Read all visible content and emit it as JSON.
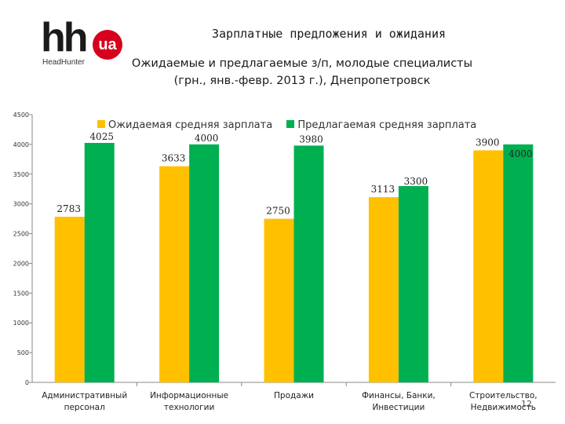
{
  "logo": {
    "brand": "hh",
    "badge": "ua",
    "name": "HeadHunter"
  },
  "header": {
    "title": "Зарплатные предложения и ожидания",
    "subtitle_line1": "Ожидаемые и предлагаемые з/п, молодые специалисты",
    "subtitle_line2": "(грн., янв.-февр. 2013 г.), Днепропетровск"
  },
  "slide_number": "12",
  "colors": {
    "expected": "#FFC000",
    "offered": "#00B050"
  },
  "chart_data": {
    "type": "bar",
    "title": "Ожидаемые и предлагаемые з/п, молодые специалисты (грн., янв.-февр. 2013 г.), Днепропетровск",
    "xlabel": "",
    "ylabel": "",
    "ylim": [
      0,
      4500
    ],
    "yticks": [
      0,
      500,
      1000,
      1500,
      2000,
      2500,
      3000,
      3500,
      4000,
      4500
    ],
    "grid": false,
    "legend": "top",
    "categories": [
      [
        "Административный",
        "персонал"
      ],
      [
        "Информационные",
        "технологии"
      ],
      [
        "Продажи"
      ],
      [
        "Финансы, Банки,",
        "Инвестиции"
      ],
      [
        "Строительство,",
        "Недвижимость"
      ]
    ],
    "series": [
      {
        "name": "Ожидаемая средняя зарплата",
        "values": [
          2783,
          3633,
          2750,
          3113,
          3900
        ],
        "labels": [
          "2783",
          "3633",
          "2750",
          "3113",
          "3900"
        ]
      },
      {
        "name": "Предлагаемая средняя зарплата",
        "values": [
          4025,
          4000,
          3980,
          3300,
          4000
        ],
        "labels": [
          "4025",
          "4000",
          "3980",
          "3300",
          "4000"
        ]
      }
    ]
  }
}
